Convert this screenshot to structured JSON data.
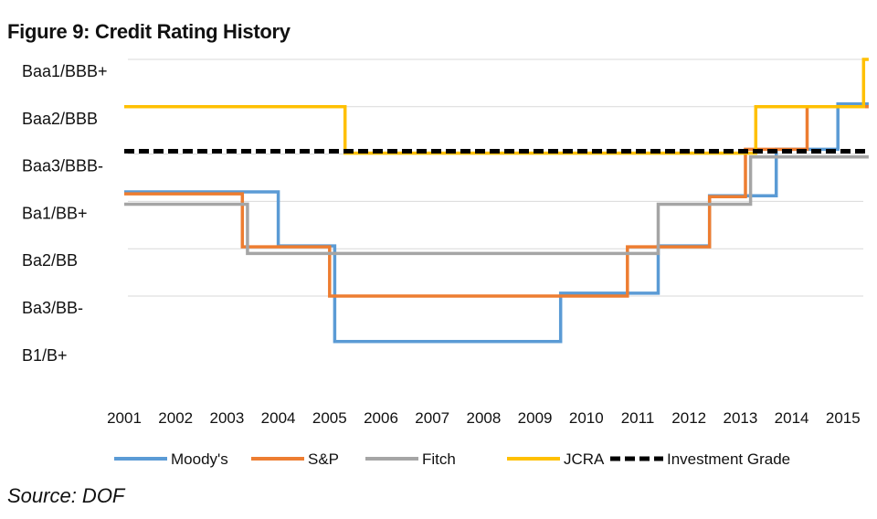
{
  "figure": {
    "title": "Figure 9: Credit Rating History",
    "source": "Source: DOF"
  },
  "chart_data": {
    "type": "line",
    "title": "Figure 9: Credit Rating History",
    "y_categories": [
      "B1/B+",
      "Ba3/BB-",
      "Ba2/BB",
      "Ba1/BB+",
      "Baa3/BBB-",
      "Baa2/BBB",
      "Baa1/BBB+"
    ],
    "x_ticks": [
      "2001",
      "2002",
      "2003",
      "2004",
      "2005",
      "2006",
      "2007",
      "2008",
      "2009",
      "2010",
      "2011",
      "2012",
      "2013",
      "2014",
      "2015"
    ],
    "xlim": [
      2001,
      2015.5
    ],
    "ylim": [
      0,
      6
    ],
    "grid": "horizontal",
    "legend_position": "bottom",
    "series": [
      {
        "name": "Moody's",
        "color": "#5b9bd5",
        "style": "step",
        "points": [
          [
            2001,
            3.2
          ],
          [
            2004.0,
            3.2
          ],
          [
            2004.0,
            2.06
          ],
          [
            2005.1,
            2.06
          ],
          [
            2005.1,
            0.04
          ],
          [
            2009.5,
            0.04
          ],
          [
            2009.5,
            1.06
          ],
          [
            2011.4,
            1.06
          ],
          [
            2011.4,
            2.06
          ],
          [
            2012.4,
            2.06
          ],
          [
            2012.4,
            3.12
          ],
          [
            2013.7,
            3.12
          ],
          [
            2013.7,
            4.1
          ],
          [
            2014.9,
            4.1
          ],
          [
            2014.9,
            5.06
          ],
          [
            2015.5,
            5.06
          ]
        ]
      },
      {
        "name": "S&P",
        "color": "#ed7d31",
        "style": "step",
        "points": [
          [
            2001,
            3.16
          ],
          [
            2003.3,
            3.16
          ],
          [
            2003.3,
            2.04
          ],
          [
            2005.0,
            2.04
          ],
          [
            2005.0,
            1.0
          ],
          [
            2010.8,
            1.0
          ],
          [
            2010.8,
            2.04
          ],
          [
            2012.4,
            2.04
          ],
          [
            2012.4,
            3.1
          ],
          [
            2013.1,
            3.1
          ],
          [
            2013.1,
            4.1
          ],
          [
            2014.3,
            4.1
          ],
          [
            2014.3,
            5.0
          ],
          [
            2015.5,
            5.0
          ]
        ]
      },
      {
        "name": "Fitch",
        "color": "#a5a5a5",
        "style": "step",
        "points": [
          [
            2001,
            2.94
          ],
          [
            2003.4,
            2.94
          ],
          [
            2003.4,
            1.9
          ],
          [
            2011.4,
            1.9
          ],
          [
            2011.4,
            2.94
          ],
          [
            2013.2,
            2.94
          ],
          [
            2013.2,
            3.94
          ],
          [
            2015.5,
            3.94
          ]
        ]
      },
      {
        "name": "JCRA",
        "color": "#ffc000",
        "style": "step",
        "points": [
          [
            2001,
            5.0
          ],
          [
            2005.3,
            5.0
          ],
          [
            2005.3,
            4.02
          ],
          [
            2013.3,
            4.02
          ],
          [
            2013.3,
            5.0
          ],
          [
            2015.4,
            5.0
          ],
          [
            2015.4,
            6.0
          ],
          [
            2015.5,
            6.0
          ]
        ]
      },
      {
        "name": "Investment Grade",
        "color": "#000000",
        "style": "dashed",
        "points": [
          [
            2001,
            4.06
          ],
          [
            2015.5,
            4.06
          ]
        ]
      }
    ]
  }
}
